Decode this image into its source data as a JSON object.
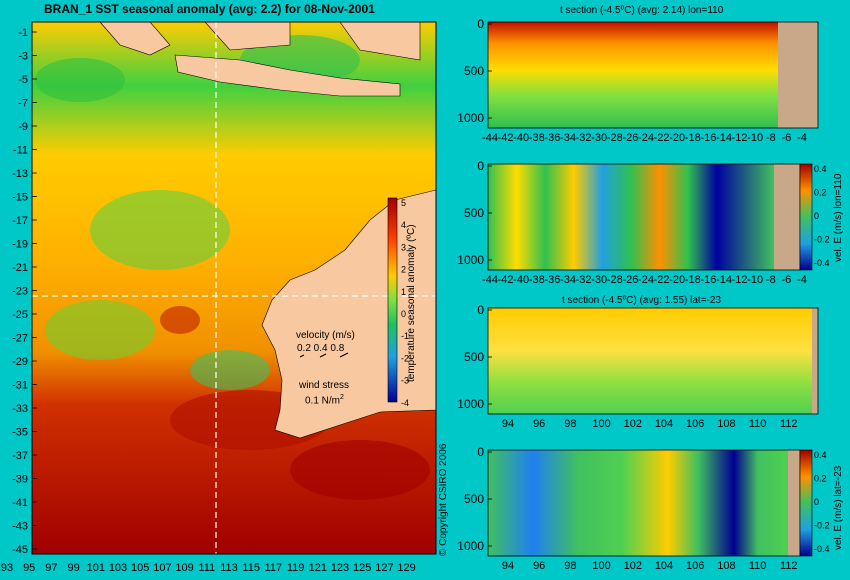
{
  "map": {
    "title": "BRAN_1  SST seasonal anomaly  (avg: 2.2)  for 08-Nov-2001",
    "lat_ticks": [
      "-1",
      "-3",
      "-5",
      "-7",
      "-9",
      "-11",
      "-13",
      "-15",
      "-17",
      "-19",
      "-21",
      "-23",
      "-25",
      "-27",
      "-29",
      "-31",
      "-33",
      "-35",
      "-37",
      "-39",
      "-41",
      "-43",
      "-45"
    ],
    "lon_ticks": [
      "93",
      "95",
      "97",
      "99",
      "101",
      "103",
      "105",
      "107",
      "109",
      "111",
      "113",
      "115",
      "117",
      "119",
      "121",
      "123",
      "125",
      "127",
      "129"
    ],
    "colorbar_ticks": [
      "5",
      "4",
      "3",
      "2",
      "1",
      "0",
      "-1",
      "-2",
      "-3",
      "-4"
    ],
    "colorbar_label": "temperature seasonal anomaly (ºC)",
    "velocity_label": "velocity (m/s)",
    "velocity_values": "0.2 0.4 0.8",
    "wind_label": "wind stress",
    "wind_value": "0.1 N/m",
    "wind_sup": "2",
    "copyright": "© Copyright CSIRO 2006"
  },
  "panels": [
    {
      "title": "t section (-4.5ºC)  (avg: 2.14) lon=110",
      "yticks": [
        "0",
        "500",
        "1000"
      ],
      "xticks": [
        "-44",
        "-42",
        "-40",
        "-38",
        "-36",
        "-34",
        "-32",
        "-30",
        "-28",
        "-26",
        "-24",
        "-22",
        "-20",
        "-18",
        "-16",
        "-14",
        "-12",
        "-10",
        "-8",
        "-6",
        "-4"
      ]
    },
    {
      "title": "",
      "yticks": [
        "0",
        "500",
        "1000"
      ],
      "xticks": [
        "-44",
        "-42",
        "-40",
        "-38",
        "-36",
        "-34",
        "-32",
        "-30",
        "-28",
        "-26",
        "-24",
        "-22",
        "-20",
        "-18",
        "-16",
        "-14",
        "-12",
        "-10",
        "-8",
        "-6",
        "-4"
      ],
      "cb_ticks": [
        "0.4",
        "0.2",
        "0",
        "-0.2",
        "-0.4"
      ],
      "cb_label": "vel. E (m/s) lon=110"
    },
    {
      "title": "t section (-4.5ºC)  (avg: 1.55) lat=-23",
      "yticks": [
        "0",
        "500",
        "1000"
      ],
      "xticks": [
        "94",
        "96",
        "98",
        "100",
        "102",
        "104",
        "106",
        "108",
        "110",
        "112"
      ]
    },
    {
      "title": "",
      "yticks": [
        "0",
        "500",
        "1000"
      ],
      "xticks": [
        "94",
        "96",
        "98",
        "100",
        "102",
        "104",
        "106",
        "108",
        "110",
        "112"
      ],
      "cb_ticks": [
        "0.4",
        "0.2",
        "0",
        "-0.2",
        "-0.4"
      ],
      "cb_label": "vel. E (m/s) lat=-23"
    }
  ],
  "chart_data": [
    {
      "type": "heatmap",
      "title": "BRAN_1  SST seasonal anomaly  (avg: 2.2)  for 08-Nov-2001",
      "xlabel": "",
      "ylabel": "",
      "xlim": [
        93,
        130
      ],
      "ylim": [
        -45,
        0
      ],
      "color_range": [
        -4,
        5
      ],
      "colorbar_label": "temperature seasonal anomaly (ºC)"
    },
    {
      "type": "heatmap",
      "title": "t section (-4.5ºC)  (avg: 2.14) lon=110",
      "xlim": [
        -45,
        -3
      ],
      "ylim": [
        1050,
        0
      ]
    },
    {
      "type": "heatmap",
      "title": "",
      "xlim": [
        -45,
        -3
      ],
      "ylim": [
        1050,
        0
      ],
      "color_range": [
        -0.4,
        0.4
      ],
      "colorbar_label": "vel. E (m/s) lon=110"
    },
    {
      "type": "heatmap",
      "title": "t section (-4.5ºC)  (avg: 1.55) lat=-23",
      "xlim": [
        93,
        114
      ],
      "ylim": [
        1050,
        0
      ]
    },
    {
      "type": "heatmap",
      "title": "",
      "xlim": [
        93,
        114
      ],
      "ylim": [
        1050,
        0
      ],
      "color_range": [
        -0.4,
        0.4
      ],
      "colorbar_label": "vel. E (m/s) lat=-23"
    }
  ]
}
